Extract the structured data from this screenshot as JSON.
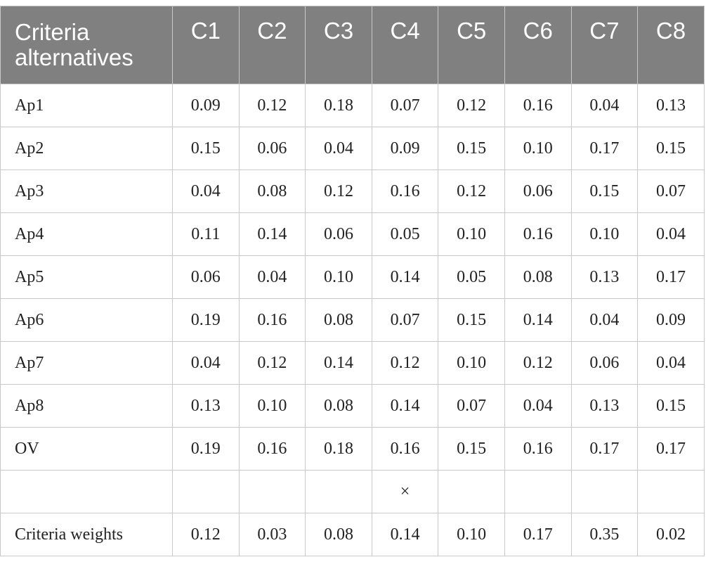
{
  "table": {
    "header": {
      "first_line1": "Criteria",
      "first_line2": "alternatives",
      "columns": [
        "C1",
        "C2",
        "C3",
        "C4",
        "C5",
        "C6",
        "C7",
        "C8"
      ]
    },
    "rows": [
      {
        "label": "Ap1",
        "values": [
          "0.09",
          "0.12",
          "0.18",
          "0.07",
          "0.12",
          "0.16",
          "0.04",
          "0.13"
        ]
      },
      {
        "label": "Ap2",
        "values": [
          "0.15",
          "0.06",
          "0.04",
          "0.09",
          "0.15",
          "0.10",
          "0.17",
          "0.15"
        ]
      },
      {
        "label": "Ap3",
        "values": [
          "0.04",
          "0.08",
          "0.12",
          "0.16",
          "0.12",
          "0.06",
          "0.15",
          "0.07"
        ]
      },
      {
        "label": "Ap4",
        "values": [
          "0.11",
          "0.14",
          "0.06",
          "0.05",
          "0.10",
          "0.16",
          "0.10",
          "0.04"
        ]
      },
      {
        "label": "Ap5",
        "values": [
          "0.06",
          "0.04",
          "0.10",
          "0.14",
          "0.05",
          "0.08",
          "0.13",
          "0.17"
        ]
      },
      {
        "label": "Ap6",
        "values": [
          "0.19",
          "0.16",
          "0.08",
          "0.07",
          "0.15",
          "0.14",
          "0.04",
          "0.09"
        ]
      },
      {
        "label": "Ap7",
        "values": [
          "0.04",
          "0.12",
          "0.14",
          "0.12",
          "0.10",
          "0.12",
          "0.06",
          "0.04"
        ]
      },
      {
        "label": "Ap8",
        "values": [
          "0.13",
          "0.10",
          "0.08",
          "0.14",
          "0.07",
          "0.04",
          "0.13",
          "0.15"
        ]
      },
      {
        "label": "OV",
        "values": [
          "0.19",
          "0.16",
          "0.18",
          "0.16",
          "0.15",
          "0.16",
          "0.17",
          "0.17"
        ]
      },
      {
        "label": "",
        "values": [
          "",
          "",
          "",
          "×",
          "",
          "",
          "",
          ""
        ]
      },
      {
        "label": "Criteria weights",
        "values": [
          "0.12",
          "0.03",
          "0.08",
          "0.14",
          "0.10",
          "0.17",
          "0.35",
          "0.02"
        ]
      }
    ]
  }
}
